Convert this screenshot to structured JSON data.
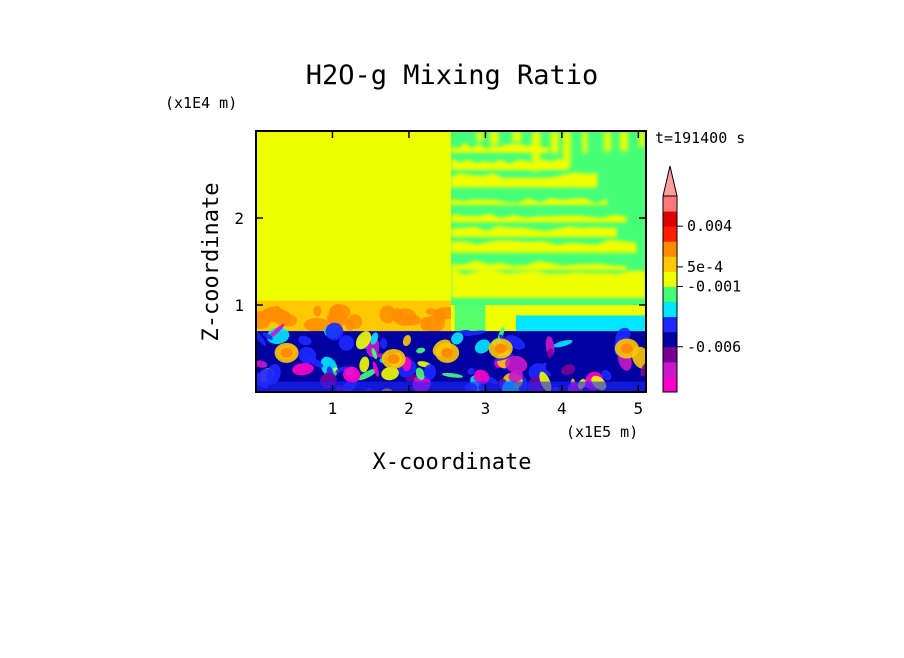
{
  "chart_data": {
    "type": "heatmap",
    "title": "H2O-g Mixing Ratio",
    "xlabel": "X-coordinate",
    "ylabel": "Z-coordinate",
    "x_unit": "(x1E5 m)",
    "y_unit": "(x1E4 m)",
    "time_label": "t=191400 s",
    "xlim": [
      0,
      5.1
    ],
    "ylim": [
      0,
      3.0
    ],
    "x_ticks": [
      1,
      2,
      3,
      4,
      5
    ],
    "x_tick_labels": [
      "1",
      "2",
      "3",
      "4",
      "5"
    ],
    "y_ticks": [
      1,
      2
    ],
    "y_tick_labels": [
      "1",
      "2"
    ],
    "grid": false,
    "colorbar": {
      "extend": "max",
      "bins": [
        {
          "color": "#ff00c8"
        },
        {
          "color": "#c818c8"
        },
        {
          "color": "#7a0096"
        },
        {
          "color": "#0000a0"
        },
        {
          "color": "#1e28ff"
        },
        {
          "color": "#00e6ff"
        },
        {
          "color": "#46ff78"
        },
        {
          "color": "#f0ff00"
        },
        {
          "color": "#ffc800"
        },
        {
          "color": "#ff8c00"
        },
        {
          "color": "#ff1e00"
        },
        {
          "color": "#dc0000"
        },
        {
          "color": "#ff7878"
        }
      ],
      "extend_color": "#ff9c9c",
      "labels": [
        {
          "text": "0.004",
          "level": 11
        },
        {
          "text": "5e-4",
          "level": 8.3
        },
        {
          "text": "-0.001",
          "level": 7
        },
        {
          "text": "-0.006",
          "level": 3
        }
      ]
    },
    "regions": [
      {
        "field": "yellow",
        "x": [
          0,
          2.55
        ],
        "z": [
          1.0,
          3.0
        ]
      },
      {
        "field": "green-upper",
        "x": [
          2.55,
          5.1
        ],
        "z": [
          1.35,
          3.0
        ]
      },
      {
        "field": "orange-band",
        "x": [
          0,
          5.1
        ],
        "z": [
          0.7,
          1.05
        ]
      },
      {
        "field": "blue-turbulent",
        "x": [
          0,
          5.1
        ],
        "z": [
          0,
          0.7
        ]
      }
    ]
  }
}
